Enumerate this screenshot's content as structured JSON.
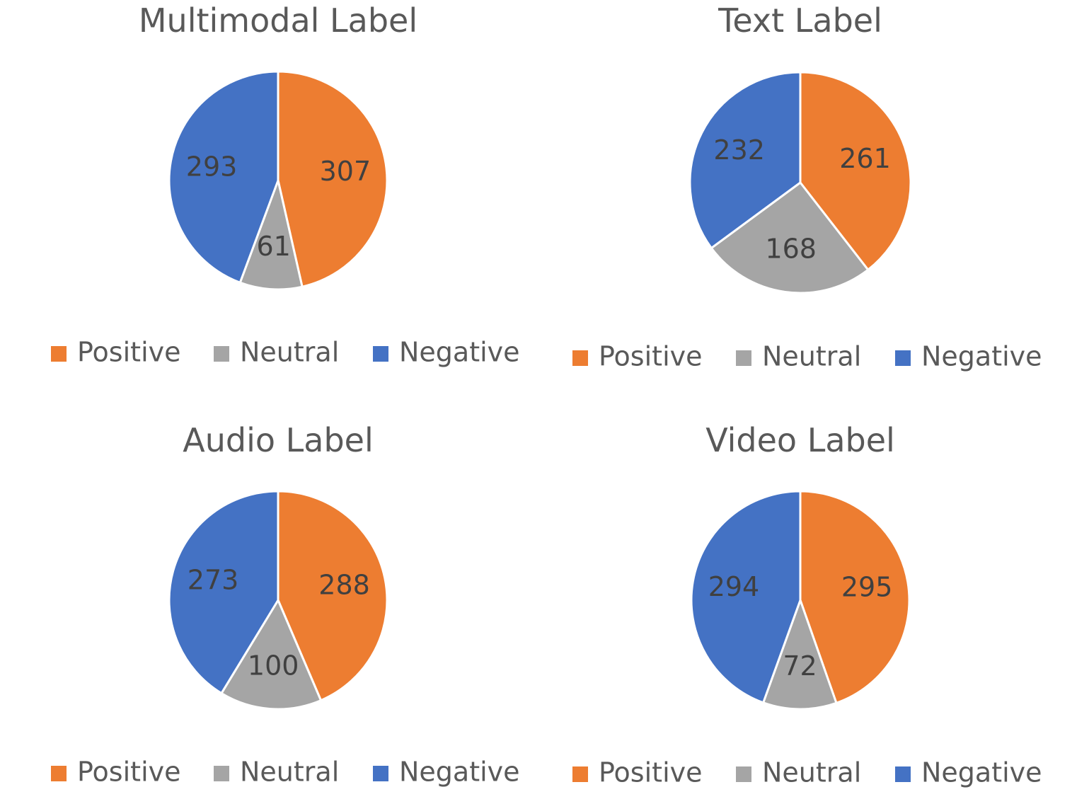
{
  "colors": {
    "Positive": "#ED7D31",
    "Neutral": "#A5A5A5",
    "Negative": "#4472C4"
  },
  "chart_data": [
    {
      "type": "pie",
      "title": "Multimodal Label",
      "categories": [
        "Positive",
        "Neutral",
        "Negative"
      ],
      "values": [
        307,
        61,
        293
      ],
      "legend": "bottom"
    },
    {
      "type": "pie",
      "title": "Text Label",
      "categories": [
        "Positive",
        "Neutral",
        "Negative"
      ],
      "values": [
        261,
        168,
        232
      ],
      "legend": "bottom"
    },
    {
      "type": "pie",
      "title": "Audio Label",
      "categories": [
        "Positive",
        "Neutral",
        "Negative"
      ],
      "values": [
        288,
        100,
        273
      ],
      "legend": "bottom"
    },
    {
      "type": "pie",
      "title": "Video Label",
      "categories": [
        "Positive",
        "Neutral",
        "Negative"
      ],
      "values": [
        295,
        72,
        294
      ],
      "legend": "bottom"
    }
  ]
}
